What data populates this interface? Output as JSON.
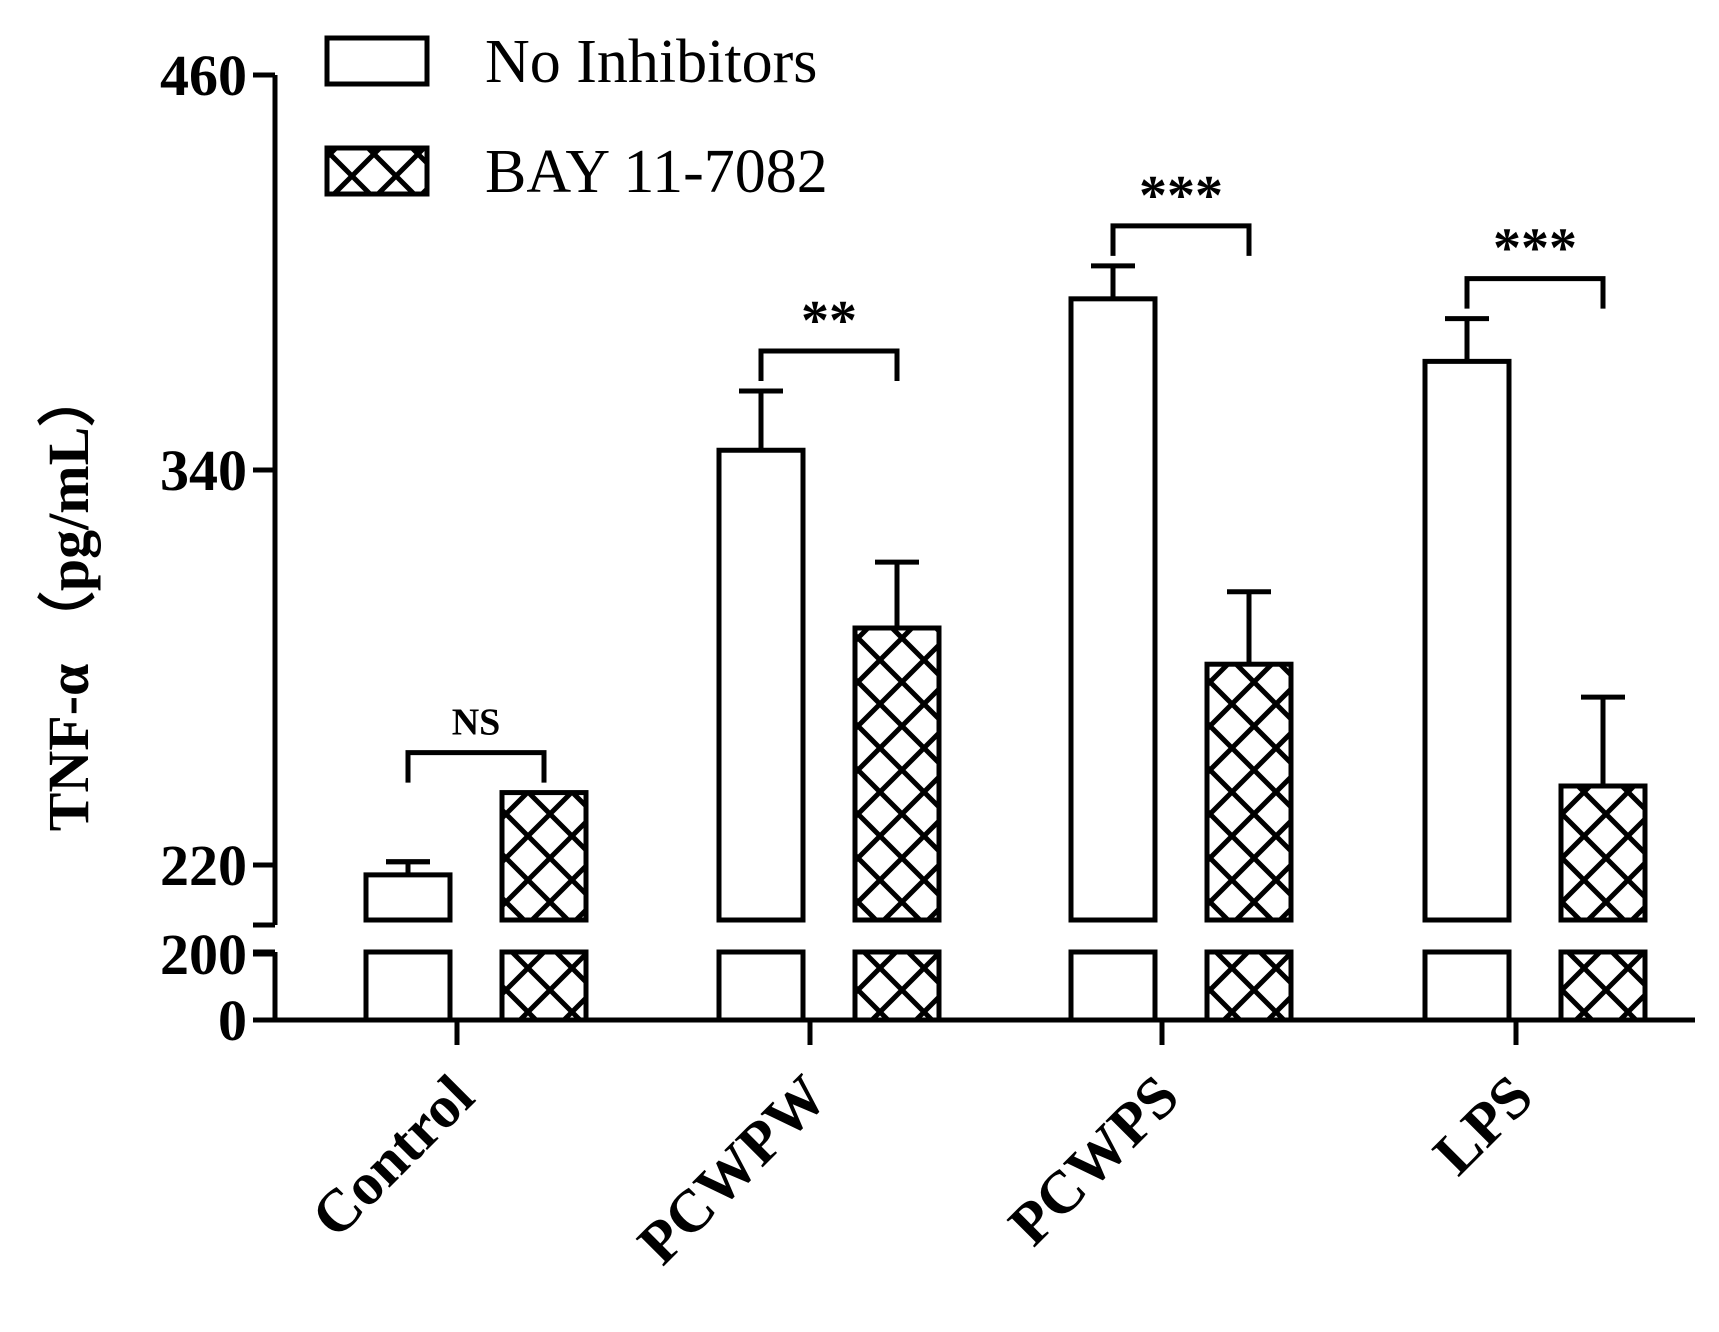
{
  "chart_data": {
    "type": "bar",
    "ylabel": "TNF-α （pg/mL）",
    "categories": [
      "Control",
      "PCWPW",
      "PCWPS",
      "LPS"
    ],
    "series": [
      {
        "name": "No Inhibitors",
        "pattern": "none",
        "values": [
          217,
          346,
          392,
          373
        ],
        "errors": [
          4,
          18,
          10,
          13
        ]
      },
      {
        "name": "BAY 11-7082",
        "pattern": "crosshatch",
        "values": [
          242,
          292,
          281,
          244
        ],
        "errors": [
          0,
          20,
          22,
          27
        ]
      }
    ],
    "yaxis": {
      "break_range": [
        0,
        200
      ],
      "upper_range": [
        200,
        460
      ],
      "tick_values": [
        0,
        200,
        220,
        340,
        460
      ],
      "tick_labels": [
        "0",
        "200",
        "220",
        "340",
        "460"
      ]
    },
    "significance": [
      {
        "category": "Control",
        "label": "NS"
      },
      {
        "category": "PCWPW",
        "label": "**"
      },
      {
        "category": "PCWPS",
        "label": "***"
      },
      {
        "category": "LPS",
        "label": "***"
      }
    ],
    "legend": {
      "placement": "top-left"
    }
  },
  "colors": {
    "line": "#000000",
    "fill": "#ffffff"
  }
}
